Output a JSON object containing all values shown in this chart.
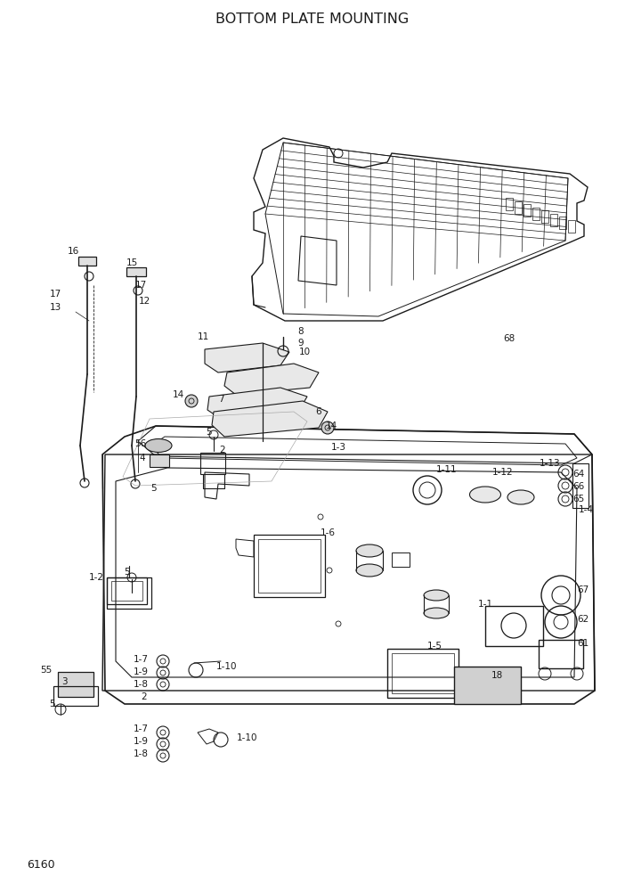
{
  "title": "BOTTOM PLATE MOUNTING",
  "page_number": "6160",
  "bg_color": "#ffffff",
  "line_color": "#1a1a1a",
  "title_fontsize": 11.5,
  "page_fontsize": 9,
  "label_fontsize": 7.5,
  "fig_width": 7.02,
  "fig_height": 9.92,
  "dpi": 100
}
